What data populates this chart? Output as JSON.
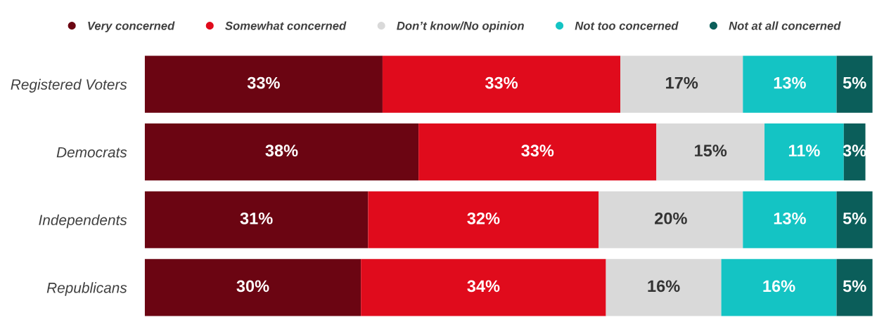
{
  "chart_data": {
    "type": "bar",
    "orientation": "horizontal",
    "stacked": true,
    "legend": "top",
    "categories": [
      "Registered Voters",
      "Democrats",
      "Independents",
      "Republicans"
    ],
    "series": [
      {
        "name": "Very concerned",
        "color": "#6b0512",
        "values": [
          33,
          38,
          31,
          30
        ],
        "value_labels": [
          "33%",
          "38%",
          "31%",
          "30%"
        ]
      },
      {
        "name": "Somewhat concerned",
        "color": "#e00b1c",
        "values": [
          33,
          33,
          32,
          34
        ],
        "value_labels": [
          "33%",
          "33%",
          "32%",
          "34%"
        ]
      },
      {
        "name": "Don’t know/No opinion",
        "color": "#d9d9d9",
        "values": [
          17,
          15,
          20,
          16
        ],
        "value_labels": [
          "17%",
          "15%",
          "20%",
          "16%"
        ]
      },
      {
        "name": "Not too concerned",
        "color": "#14c4c4",
        "values": [
          13,
          11,
          13,
          16
        ],
        "value_labels": [
          "13%",
          "11%",
          "13%",
          "16%"
        ]
      },
      {
        "name": "Not at all concerned",
        "color": "#0b5e5a",
        "values": [
          5,
          3,
          5,
          5
        ],
        "value_labels": [
          "5%",
          "3%",
          "5%",
          "5%"
        ]
      }
    ]
  }
}
